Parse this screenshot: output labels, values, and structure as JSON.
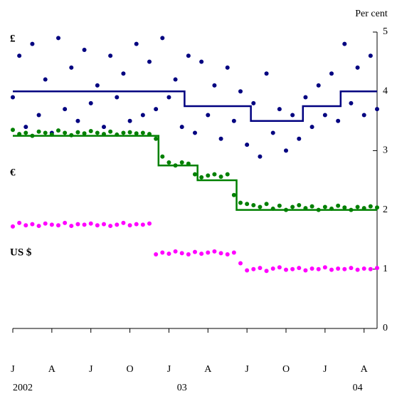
{
  "chart_data": {
    "type": "scatter",
    "y_unit_label": "Per cent",
    "xlim": [
      0,
      28
    ],
    "ylim": [
      0,
      5
    ],
    "yticks": [
      0,
      1,
      2,
      3,
      4,
      5
    ],
    "xticks": [
      {
        "value": 0,
        "label": "J"
      },
      {
        "value": 3,
        "label": "A"
      },
      {
        "value": 6,
        "label": "J"
      },
      {
        "value": 9,
        "label": "O"
      },
      {
        "value": 12,
        "label": "J"
      },
      {
        "value": 15,
        "label": "A"
      },
      {
        "value": 18,
        "label": "J"
      },
      {
        "value": 21,
        "label": "O"
      },
      {
        "value": 24,
        "label": "J"
      },
      {
        "value": 27,
        "label": "A"
      }
    ],
    "year_labels": [
      {
        "value": 0,
        "label": "2002"
      },
      {
        "value": 13,
        "label": "03"
      },
      {
        "value": 26.5,
        "label": "04"
      }
    ],
    "series": [
      {
        "name": "£",
        "type": "scatter",
        "color": "#000080",
        "x": [
          0,
          0.5,
          1,
          1.5,
          2,
          2.5,
          3,
          3.5,
          4,
          4.5,
          5,
          5.5,
          6,
          6.5,
          7,
          7.5,
          8,
          8.5,
          9,
          9.5,
          10,
          10.5,
          11,
          11.5,
          12,
          12.5,
          13,
          13.5,
          14,
          14.5,
          15,
          15.5,
          16,
          16.5,
          17,
          17.5,
          18,
          18.5,
          19,
          19.5,
          20,
          20.5,
          21,
          21.5,
          22,
          22.5,
          23,
          23.5,
          24,
          24.5,
          25,
          25.5,
          26,
          26.5,
          27,
          27.5,
          28
        ],
        "values": [
          3.9,
          4.6,
          3.4,
          4.8,
          3.6,
          4.2,
          3.3,
          4.9,
          3.7,
          4.4,
          3.5,
          4.7,
          3.8,
          4.1,
          3.4,
          4.6,
          3.9,
          4.3,
          3.5,
          4.8,
          3.6,
          4.5,
          3.7,
          4.9,
          3.9,
          4.2,
          3.4,
          4.6,
          3.3,
          4.5,
          3.6,
          4.1,
          3.2,
          4.4,
          3.5,
          4.0,
          3.1,
          3.8,
          2.9,
          4.3,
          3.3,
          3.7,
          3.0,
          3.6,
          3.2,
          3.9,
          3.4,
          4.1,
          3.6,
          4.3,
          3.5,
          4.8,
          3.8,
          4.4,
          3.6,
          4.6,
          3.7
        ]
      },
      {
        "name": "€",
        "type": "scatter",
        "color": "#008000",
        "x": [
          0,
          0.5,
          1,
          1.5,
          2,
          2.5,
          3,
          3.5,
          4,
          4.5,
          5,
          5.5,
          6,
          6.5,
          7,
          7.5,
          8,
          8.5,
          9,
          9.5,
          10,
          10.5,
          11,
          11.5,
          12,
          12.5,
          13,
          13.5,
          14,
          14.5,
          15,
          15.5,
          16,
          16.5,
          17,
          17.5,
          18,
          18.5,
          19,
          19.5,
          20,
          20.5,
          21,
          21.5,
          22,
          22.5,
          23,
          23.5,
          24,
          24.5,
          25,
          25.5,
          26,
          26.5,
          27,
          27.5,
          28
        ],
        "values": [
          3.35,
          3.28,
          3.3,
          3.25,
          3.32,
          3.3,
          3.27,
          3.34,
          3.3,
          3.26,
          3.31,
          3.29,
          3.33,
          3.3,
          3.28,
          3.32,
          3.27,
          3.3,
          3.31,
          3.29,
          3.3,
          3.28,
          3.2,
          2.9,
          2.8,
          2.75,
          2.8,
          2.78,
          2.6,
          2.55,
          2.58,
          2.6,
          2.56,
          2.6,
          2.25,
          2.12,
          2.1,
          2.08,
          2.05,
          2.1,
          2.02,
          2.07,
          2.0,
          2.05,
          2.08,
          2.03,
          2.06,
          2.0,
          2.05,
          2.02,
          2.07,
          2.04,
          2.0,
          2.05,
          2.03,
          2.06,
          2.04
        ]
      },
      {
        "name": "US $",
        "type": "scatter",
        "color": "#ff00ff",
        "x": [
          0,
          0.5,
          1,
          1.5,
          2,
          2.5,
          3,
          3.5,
          4,
          4.5,
          5,
          5.5,
          6,
          6.5,
          7,
          7.5,
          8,
          8.5,
          9,
          9.5,
          10,
          10.5,
          11,
          11.5,
          12,
          12.5,
          13,
          13.5,
          14,
          14.5,
          15,
          15.5,
          16,
          16.5,
          17,
          17.5,
          18,
          18.5,
          19,
          19.5,
          20,
          20.5,
          21,
          21.5,
          22,
          22.5,
          23,
          23.5,
          24,
          24.5,
          25,
          25.5,
          26,
          26.5,
          27,
          27.5,
          28
        ],
        "values": [
          1.72,
          1.78,
          1.74,
          1.76,
          1.73,
          1.77,
          1.75,
          1.74,
          1.78,
          1.73,
          1.76,
          1.75,
          1.77,
          1.74,
          1.76,
          1.73,
          1.75,
          1.78,
          1.74,
          1.76,
          1.75,
          1.77,
          1.25,
          1.28,
          1.26,
          1.3,
          1.27,
          1.25,
          1.29,
          1.26,
          1.28,
          1.3,
          1.27,
          1.25,
          1.28,
          1.1,
          0.98,
          1.0,
          1.02,
          0.97,
          1.01,
          1.03,
          0.99,
          1.0,
          1.02,
          0.98,
          1.01,
          1.0,
          1.03,
          0.99,
          1.01,
          1.0,
          1.02,
          0.99,
          1.01,
          1.0,
          1.02
        ]
      },
      {
        "type": "line",
        "color": "#000080",
        "x": [
          0,
          13.2,
          13.2,
          18.3,
          18.3,
          22.3,
          22.3,
          25.2,
          25.2,
          28
        ],
        "values": [
          4,
          4,
          3.75,
          3.75,
          3.5,
          3.5,
          3.75,
          3.75,
          4,
          4
        ]
      },
      {
        "type": "line",
        "color": "#008000",
        "x": [
          0,
          11.2,
          11.2,
          14.2,
          14.2,
          17.2,
          17.2,
          28
        ],
        "values": [
          3.25,
          3.25,
          2.75,
          2.75,
          2.5,
          2.5,
          2,
          2
        ]
      }
    ]
  }
}
